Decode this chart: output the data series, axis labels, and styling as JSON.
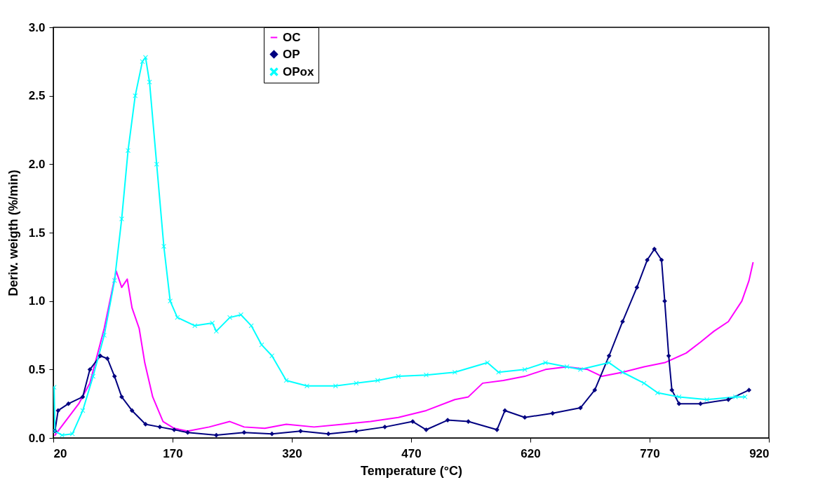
{
  "chart_data": {
    "type": "line",
    "xlabel": "Temperature (°C)",
    "ylabel": "Deriv. weigth (%/min)",
    "xlim": [
      20,
      920
    ],
    "xticks": [
      20,
      170,
      320,
      470,
      620,
      770,
      920
    ],
    "ylim": [
      0,
      3
    ],
    "yticks": [
      {
        "value": 0,
        "label": "0.0"
      },
      {
        "value": 0.5,
        "label": "0.5"
      },
      {
        "value": 1,
        "label": "1.0"
      },
      {
        "value": 1.5,
        "label": "1.5"
      },
      {
        "value": 2,
        "label": "2.0"
      },
      {
        "value": 2.5,
        "label": "2.5"
      },
      {
        "value": 3,
        "label": "3.0"
      }
    ],
    "grid": false,
    "legend": "top",
    "series": [
      {
        "name": "OC",
        "color": "#ff00ff",
        "marker": "none",
        "x": [
          22,
          39,
          52,
          66,
          84,
          99,
          106,
          113,
          119,
          128,
          135,
          145,
          158,
          172,
          189,
          216,
          242,
          260,
          286,
          313,
          348,
          384,
          419,
          454,
          489,
          525,
          542,
          560,
          586,
          613,
          639,
          666,
          692,
          710,
          736,
          763,
          789,
          816,
          834,
          851,
          869,
          886,
          895,
          900
        ],
        "values": [
          0.02,
          0.15,
          0.25,
          0.4,
          0.8,
          1.22,
          1.1,
          1.16,
          0.95,
          0.8,
          0.55,
          0.3,
          0.12,
          0.07,
          0.05,
          0.08,
          0.12,
          0.08,
          0.07,
          0.1,
          0.08,
          0.1,
          0.12,
          0.15,
          0.2,
          0.28,
          0.3,
          0.4,
          0.42,
          0.45,
          0.5,
          0.52,
          0.5,
          0.45,
          0.48,
          0.52,
          0.55,
          0.62,
          0.7,
          0.78,
          0.85,
          1.0,
          1.15,
          1.28
        ]
      },
      {
        "name": "OP",
        "color": "#000080",
        "marker": "diamond",
        "x": [
          22,
          26,
          39,
          57,
          66,
          79,
          88,
          97,
          106,
          119,
          136,
          154,
          172,
          189,
          225,
          260,
          295,
          331,
          366,
          401,
          437,
          472,
          489,
          516,
          542,
          578,
          588,
          613,
          648,
          683,
          701,
          719,
          736,
          754,
          767,
          776,
          785,
          789,
          794,
          798,
          807,
          834,
          869,
          895
        ],
        "values": [
          0.05,
          0.2,
          0.25,
          0.3,
          0.5,
          0.6,
          0.58,
          0.45,
          0.3,
          0.2,
          0.1,
          0.08,
          0.06,
          0.04,
          0.02,
          0.04,
          0.03,
          0.05,
          0.03,
          0.05,
          0.08,
          0.12,
          0.06,
          0.13,
          0.12,
          0.06,
          0.2,
          0.15,
          0.18,
          0.22,
          0.35,
          0.6,
          0.85,
          1.1,
          1.3,
          1.38,
          1.3,
          1.0,
          0.6,
          0.35,
          0.25,
          0.25,
          0.28,
          0.35
        ]
      },
      {
        "name": "OPox",
        "color": "#00ffff",
        "marker": "cross",
        "x": [
          21,
          22,
          31,
          44,
          57,
          70,
          84,
          97,
          106,
          114,
          123,
          132,
          136,
          141,
          150,
          159,
          167,
          176,
          198,
          220,
          225,
          242,
          256,
          269,
          282,
          295,
          313,
          339,
          375,
          401,
          428,
          454,
          489,
          525,
          566,
          580,
          613,
          639,
          666,
          683,
          719,
          736,
          763,
          780,
          807,
          842,
          878,
          890
        ],
        "values": [
          0.37,
          0.05,
          0.02,
          0.03,
          0.2,
          0.45,
          0.75,
          1.15,
          1.6,
          2.1,
          2.5,
          2.75,
          2.78,
          2.6,
          2.0,
          1.4,
          1.0,
          0.88,
          0.82,
          0.84,
          0.78,
          0.88,
          0.9,
          0.82,
          0.68,
          0.6,
          0.42,
          0.38,
          0.38,
          0.4,
          0.42,
          0.45,
          0.46,
          0.48,
          0.55,
          0.48,
          0.5,
          0.55,
          0.52,
          0.5,
          0.55,
          0.48,
          0.4,
          0.33,
          0.3,
          0.28,
          0.3,
          0.3
        ]
      }
    ]
  }
}
